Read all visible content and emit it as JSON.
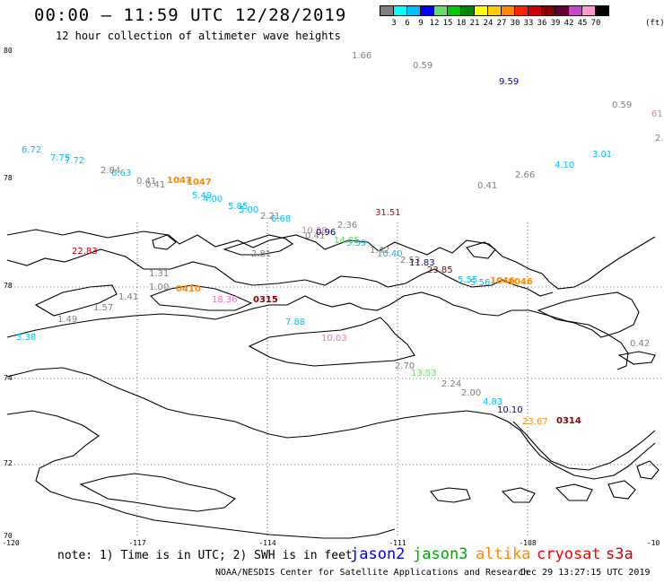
{
  "header": {
    "title": "00:00 – 11:59 UTC 12/28/2019",
    "subtitle": "12 hour collection of altimeter wave heights"
  },
  "colorbar": {
    "unit": "(ft)",
    "labels": [
      "3",
      "6",
      "9",
      "12",
      "15",
      "18",
      "21",
      "24",
      "27",
      "30",
      "33",
      "36",
      "39",
      "42",
      "45",
      "70"
    ],
    "colors": [
      "#808080",
      "#00ffff",
      "#00bfff",
      "#0000ff",
      "#66dd66",
      "#00cc00",
      "#008800",
      "#ffff00",
      "#ffcc00",
      "#ff8800",
      "#ff2200",
      "#cc0000",
      "#880000",
      "#660033",
      "#cc44cc",
      "#ff99cc",
      "#000000"
    ]
  },
  "axes": {
    "lat_labels": [
      "80",
      "78",
      "78",
      "74",
      "72",
      "70"
    ],
    "lon_labels": [
      "-120",
      "-117",
      "-114",
      "-111",
      "-108",
      "-10"
    ]
  },
  "observations": [
    {
      "text": "1.66",
      "color": "#808080"
    },
    {
      "text": "0.59",
      "color": "#808080"
    },
    {
      "text": "9.59",
      "color": "#0000cc"
    },
    {
      "text": "0.59",
      "color": "#808080"
    },
    {
      "text": "61",
      "color": "#ff66cc"
    },
    {
      "text": "2.",
      "color": "#808080"
    },
    {
      "text": "6.72",
      "color": "#00bfff"
    },
    {
      "text": "7.75",
      "color": "#00bfff"
    },
    {
      "text": "7.72",
      "color": "#00bfff"
    },
    {
      "text": "2.84",
      "color": "#808080"
    },
    {
      "text": "6.63",
      "color": "#00bfff"
    },
    {
      "text": "0.41",
      "color": "#808080"
    },
    {
      "text": "0.41",
      "color": "#808080"
    },
    {
      "text": "1047",
      "color": "#ff8800"
    },
    {
      "text": "1047",
      "color": "#ff8800"
    },
    {
      "text": "5.49",
      "color": "#00bfff"
    },
    {
      "text": "4.00",
      "color": "#00bfff"
    },
    {
      "text": "5.85",
      "color": "#00bfff"
    },
    {
      "text": "5.00",
      "color": "#00bfff"
    },
    {
      "text": "3.01",
      "color": "#00bfff"
    },
    {
      "text": "4.10",
      "color": "#00bfff"
    },
    {
      "text": "2.66",
      "color": "#808080"
    },
    {
      "text": "0.41",
      "color": "#808080"
    },
    {
      "text": "31.51",
      "color": "#cc0000"
    },
    {
      "text": "2.21",
      "color": "#808080"
    },
    {
      "text": "6.68",
      "color": "#00bfff"
    },
    {
      "text": "2.36",
      "color": "#808080"
    },
    {
      "text": "10.88",
      "color": "#ff66cc"
    },
    {
      "text": "0.41",
      "color": "#808080"
    },
    {
      "text": "0.96",
      "color": "#000088"
    },
    {
      "text": "14.85",
      "color": "#66dd66"
    },
    {
      "text": "5.59",
      "color": "#00bfff"
    },
    {
      "text": "1.42",
      "color": "#808080"
    },
    {
      "text": "10.40",
      "color": "#00bfff"
    },
    {
      "text": "22.83",
      "color": "#cc0000"
    },
    {
      "text": "2.81",
      "color": "#808080"
    },
    {
      "text": "2.53",
      "color": "#808080"
    },
    {
      "text": "11.83",
      "color": "#0000cc"
    },
    {
      "text": "23.85",
      "color": "#880000"
    },
    {
      "text": "1.31",
      "color": "#808080"
    },
    {
      "text": "5.55",
      "color": "#00bfff"
    },
    {
      "text": "5.56",
      "color": "#00bfff"
    },
    {
      "text": "1046",
      "color": "#ff8800"
    },
    {
      "text": "1046",
      "color": "#ff8800"
    },
    {
      "text": "1.00",
      "color": "#808080"
    },
    {
      "text": "0410",
      "color": "#ff8800"
    },
    {
      "text": "1.41",
      "color": "#808080"
    },
    {
      "text": "18.36",
      "color": "#ff66cc"
    },
    {
      "text": "0315",
      "color": "#880000"
    },
    {
      "text": "1.57",
      "color": "#808080"
    },
    {
      "text": "1.49",
      "color": "#808080"
    },
    {
      "text": "7.88",
      "color": "#00bfff"
    },
    {
      "text": "3.38",
      "color": "#00bfff"
    },
    {
      "text": "10.03",
      "color": "#ff66cc"
    },
    {
      "text": "0.42",
      "color": "#808080"
    },
    {
      "text": "2.70",
      "color": "#808080"
    },
    {
      "text": "13.53",
      "color": "#66dd66"
    },
    {
      "text": "2.24",
      "color": "#808080"
    },
    {
      "text": "2.00",
      "color": "#808080"
    },
    {
      "text": "4.83",
      "color": "#00bfff"
    },
    {
      "text": "10.10",
      "color": "#0000cc"
    },
    {
      "text": "23.67",
      "color": "#ff8800"
    },
    {
      "text": "0314",
      "color": "#880000"
    }
  ],
  "footer": {
    "note": "note: 1) Time is in UTC; 2) SWH is in feet",
    "satellites": [
      {
        "name": "jason2",
        "color": "#0000ff"
      },
      {
        "name": "jason3",
        "color": "#00aa00"
      },
      {
        "name": "altika",
        "color": "#ff8800"
      },
      {
        "name": "cryosat",
        "color": "#ff0000"
      },
      {
        "name": "s3a",
        "color": "#cc0000"
      }
    ],
    "credit": "NOAA/NESDIS Center for Satellite Applications and Research",
    "timestamp": "Dec 29 13:27:15 UTC 2019"
  }
}
